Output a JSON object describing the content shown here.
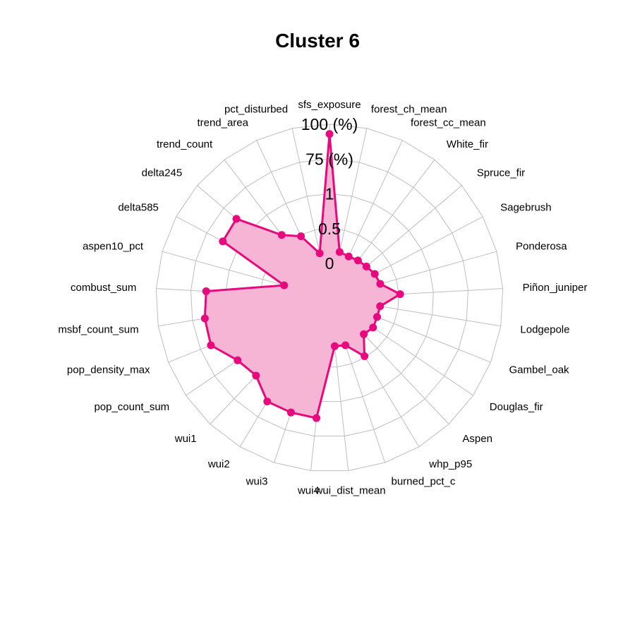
{
  "chart_data": {
    "type": "radar",
    "title": "Cluster 6",
    "axis_unit_labels": [
      "0",
      "0.5",
      "1",
      "75 (%)",
      "100 (%)"
    ],
    "grid_levels": 5,
    "range": [
      0,
      100
    ],
    "colors": {
      "line": "#E7097D",
      "fill": "#F7B5D5",
      "grid": "#BEBEBE"
    },
    "categories": [
      "sfs_exposure",
      "forest_ch_mean",
      "forest_cc_mean",
      "White_fir",
      "Spruce_fir",
      "Sagebrush",
      "Ponderosa",
      "Piñon_juniper",
      "Lodgepole",
      "Gambel_oak",
      "Douglas_fir",
      "Aspen",
      "whp_p95",
      "burned_pct_c",
      "wui_dist_mean",
      "wui4",
      "wui3",
      "wui2",
      "wui1",
      "pop_count_sum",
      "pop_density_max",
      "msbf_count_sum",
      "combust_sum",
      "aspen10_pct",
      "delta585",
      "delta245",
      "trend_count",
      "trend_area",
      "pct_disturbed"
    ],
    "values": [
      93,
      9,
      8,
      9,
      10,
      12,
      13,
      26,
      12,
      12,
      13,
      11,
      24,
      11,
      10,
      62,
      62,
      62,
      52,
      55,
      67,
      66,
      64,
      9,
      62,
      63,
      32,
      24,
      8
    ]
  }
}
